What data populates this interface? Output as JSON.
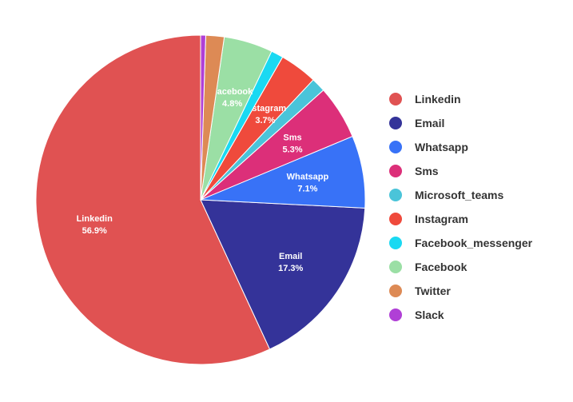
{
  "chart_data": {
    "type": "pie",
    "title": "",
    "legend_position": "right",
    "slices": [
      {
        "label": "Linkedin",
        "value": 56.9,
        "value_label": "56.9%",
        "color": "#e05252"
      },
      {
        "label": "Email",
        "value": 17.3,
        "value_label": "17.3%",
        "color": "#343399"
      },
      {
        "label": "Whatsapp",
        "value": 7.1,
        "value_label": "7.1%",
        "color": "#3872f7"
      },
      {
        "label": "Sms",
        "value": 5.3,
        "value_label": "5.3%",
        "color": "#dc2f79"
      },
      {
        "label": "Microsoft_teams",
        "value": 1.4,
        "value_label": "1.4%",
        "color": "#4ac4d9"
      },
      {
        "label": "Instagram",
        "value": 3.7,
        "value_label": "3.7%",
        "color": "#ef4a3c"
      },
      {
        "label": "Facebook_messenger",
        "value": 1.2,
        "value_label": "1.2%",
        "color": "#1ad9f2"
      },
      {
        "label": "Facebook",
        "value": 4.8,
        "value_label": "4.8%",
        "color": "#9bdfa5"
      },
      {
        "label": "Twitter",
        "value": 1.8,
        "value_label": "1.8%",
        "color": "#dd8a55"
      },
      {
        "label": "Slack",
        "value": 0.5,
        "value_label": "0.5%",
        "color": "#b03fd6"
      }
    ],
    "labeled_slices": [
      "Linkedin",
      "Email",
      "Whatsapp",
      "Sms",
      "Instagram",
      "Facebook"
    ]
  }
}
